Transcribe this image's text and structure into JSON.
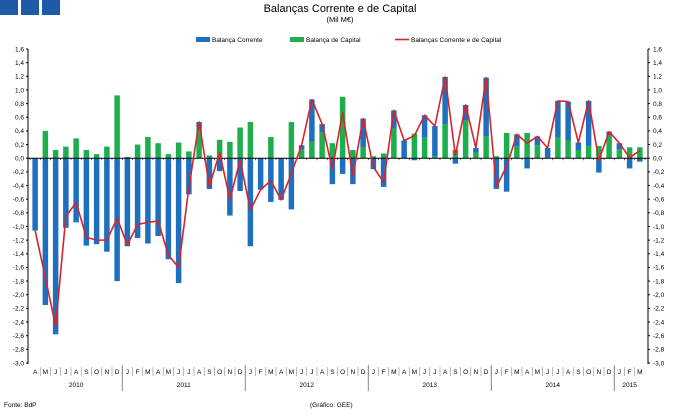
{
  "header_boxes": 3,
  "chart_data": {
    "type": "bar",
    "title": "Balanças Corrente e de Capital",
    "subtitle": "(Mil M€)",
    "ylim": [
      -3.0,
      1.6
    ],
    "ytick_step": 0.2,
    "legend_placement": "top-center",
    "legend": [
      "Balança Corrente",
      "Balança de Capital",
      "Balanças Corrente e de Capital"
    ],
    "colors": {
      "current": "#1f6fbf",
      "capital": "#1fae4e",
      "total": "#d8232a"
    },
    "months": [
      "A",
      "M",
      "J",
      "J",
      "A",
      "S",
      "O",
      "N",
      "D",
      "J",
      "F",
      "M",
      "A",
      "M",
      "J",
      "J",
      "A",
      "S",
      "O",
      "N",
      "D",
      "J",
      "F",
      "M",
      "A",
      "M",
      "J",
      "J",
      "A",
      "S",
      "O",
      "N",
      "D",
      "J",
      "F",
      "M",
      "A",
      "M",
      "J",
      "J",
      "A",
      "S",
      "O",
      "N",
      "D",
      "J",
      "F",
      "M",
      "A",
      "M",
      "J",
      "J",
      "A",
      "S",
      "O",
      "N",
      "D",
      "J",
      "F",
      "M"
    ],
    "years": [
      {
        "label": "2010",
        "months": 9
      },
      {
        "label": "2011",
        "months": 12
      },
      {
        "label": "2012",
        "months": 12
      },
      {
        "label": "2013",
        "months": 12
      },
      {
        "label": "2014",
        "months": 12
      },
      {
        "label": "2015",
        "months": 3
      }
    ],
    "series": [
      {
        "name": "Balança Corrente",
        "values": [
          -1.06,
          -2.15,
          -2.58,
          -1.02,
          -0.94,
          -1.28,
          -1.26,
          -1.37,
          -1.8,
          -1.29,
          -1.17,
          -1.25,
          -1.14,
          -1.48,
          -1.83,
          -0.53,
          0.08,
          -0.45,
          -0.19,
          -0.84,
          -0.48,
          -1.29,
          -0.46,
          -0.64,
          -0.61,
          -0.75,
          0.06,
          0.62,
          0.12,
          -0.38,
          -0.23,
          -0.38,
          0.42,
          -0.16,
          -0.42,
          0.27,
          0.26,
          -0.03,
          0.33,
          0.44,
          0.69,
          -0.08,
          0.23,
          0.07,
          0.86,
          -0.45,
          -0.49,
          0.18,
          -0.15,
          0.13,
          0.14,
          0.54,
          0.57,
          0.11,
          0.66,
          -0.21,
          0.06,
          0.09,
          -0.15,
          -0.05
        ]
      },
      {
        "name": "Balança de Capital",
        "values": [
          0.0,
          0.4,
          0.12,
          0.17,
          0.29,
          0.12,
          0.06,
          0.17,
          0.92,
          0.02,
          0.2,
          0.31,
          0.22,
          0.06,
          0.23,
          0.1,
          0.45,
          0.04,
          0.27,
          0.24,
          0.45,
          0.53,
          0.0,
          0.31,
          0.0,
          0.53,
          0.13,
          0.24,
          0.38,
          0.22,
          0.9,
          0.12,
          0.16,
          0.03,
          0.07,
          0.43,
          0.0,
          0.36,
          0.3,
          0.03,
          0.5,
          0.12,
          0.55,
          0.08,
          0.32,
          0.03,
          0.37,
          0.17,
          0.37,
          0.19,
          0.01,
          0.3,
          0.26,
          0.12,
          0.18,
          0.18,
          0.33,
          0.13,
          0.16,
          0.16
        ]
      }
    ],
    "line_series": "Balanças Corrente e de Capital"
  },
  "footer": {
    "source": "Fonte: BdP",
    "credit": "(Gráfico: GEE)"
  }
}
